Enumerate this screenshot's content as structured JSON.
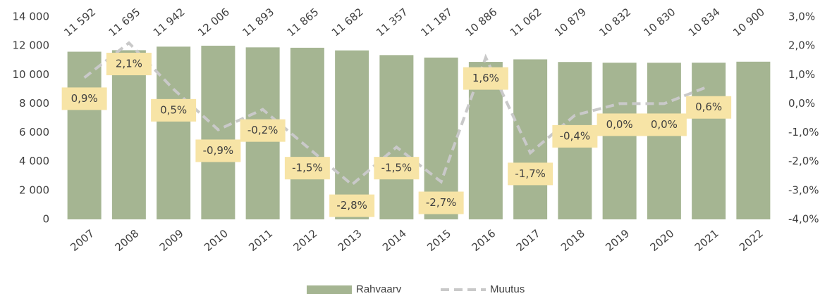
{
  "chart_data": {
    "type": "bar+line",
    "categories": [
      "2007",
      "2008",
      "2009",
      "2010",
      "2011",
      "2012",
      "2013",
      "2014",
      "2015",
      "2016",
      "2017",
      "2018",
      "2019",
      "2020",
      "2021",
      "2022"
    ],
    "series": [
      {
        "name": "Rahvaarv",
        "type": "bar",
        "color": "#a5b592",
        "values": [
          11592,
          11695,
          11942,
          12006,
          11893,
          11865,
          11682,
          11357,
          11187,
          10886,
          11062,
          10879,
          10832,
          10830,
          10834,
          10900
        ],
        "value_labels": [
          "11 592",
          "11 695",
          "11 942",
          "12 006",
          "11 893",
          "11 865",
          "11 682",
          "11 357",
          "11 187",
          "10 886",
          "11 062",
          "10 879",
          "10 832",
          "10 830",
          "10 834",
          "10 900"
        ]
      },
      {
        "name": "Muutus",
        "type": "line",
        "axis": "y2",
        "color": "#c9c9c9",
        "dashed": true,
        "label_color": "#f7e4a6",
        "values": [
          0.9,
          2.1,
          0.5,
          -0.9,
          -0.2,
          -1.5,
          -2.8,
          -1.5,
          -2.7,
          1.6,
          -1.7,
          -0.4,
          0.0,
          0.0,
          0.6,
          null
        ],
        "value_labels": [
          "0,9%",
          "2,1%",
          "0,5%",
          "-0,9%",
          "-0,2%",
          "-1,5%",
          "-2,8%",
          "-1,5%",
          "-2,7%",
          "1,6%",
          "-1,7%",
          "-0,4%",
          "0,0%",
          "0,0%",
          "0,6%",
          null
        ]
      }
    ],
    "ylim": [
      0,
      14000
    ],
    "yticks": [
      0,
      {
        "value": 2000,
        "label": "2 000"
      },
      {
        "value": 4000,
        "label": "4 000"
      },
      {
        "value": 6000,
        "label": "6 000"
      },
      {
        "value": 8000,
        "label": "8 000"
      },
      {
        "value": 10000,
        "label": "10 000"
      },
      {
        "value": 12000,
        "label": "12 000"
      },
      {
        "value": 14000,
        "label": "14 000"
      }
    ],
    "y2lim": [
      -4,
      3
    ],
    "y2ticks": [
      {
        "value": -4,
        "label": "-4,0%"
      },
      {
        "value": -3,
        "label": "-3,0%"
      },
      {
        "value": -2,
        "label": "-2,0%"
      },
      {
        "value": -1,
        "label": "-1,0%"
      },
      {
        "value": 0,
        "label": "0,0%"
      },
      {
        "value": 1,
        "label": "1,0%"
      },
      {
        "value": 2,
        "label": "2,0%"
      },
      {
        "value": 3,
        "label": "3,0%"
      }
    ],
    "legend": "bottom"
  }
}
